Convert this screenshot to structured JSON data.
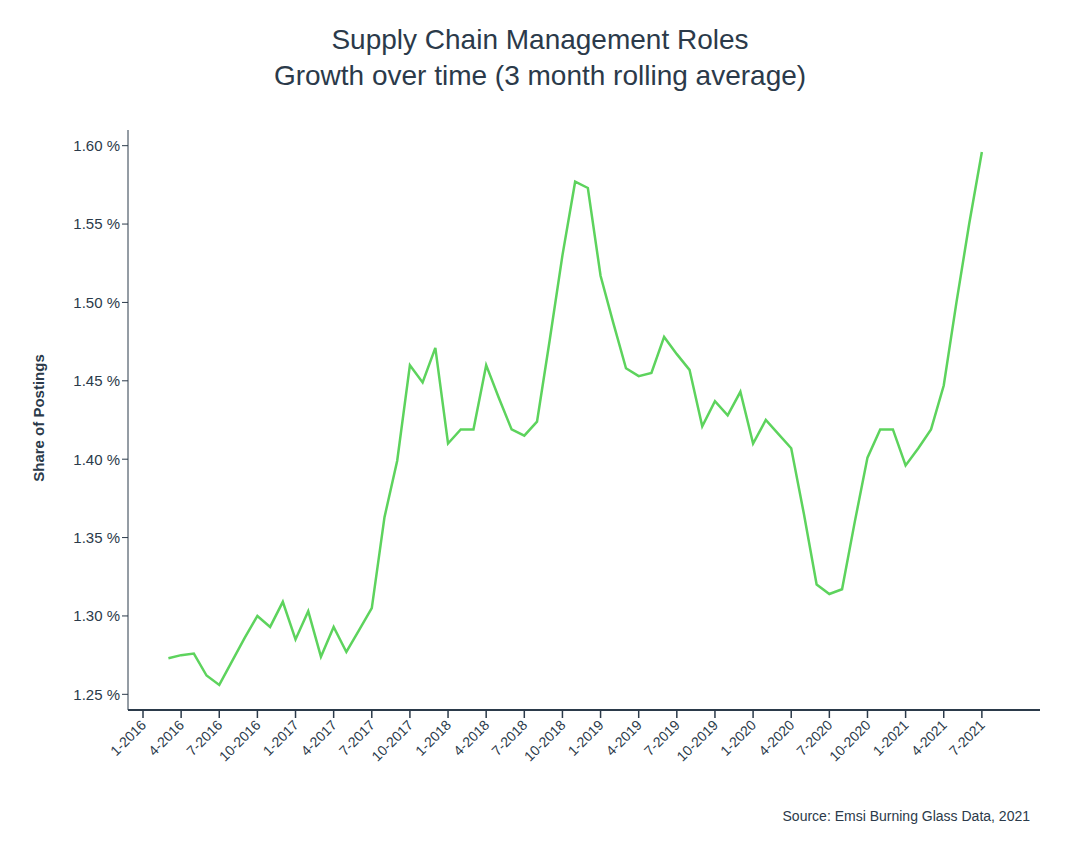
{
  "chart_data": {
    "type": "line",
    "title": "Supply Chain Management Roles\nGrowth over time (3 month rolling average)",
    "y_label": "Share of Postings",
    "source": "Source: Emsi Burning Glass Data, 2021",
    "categories": [
      "1-2016",
      null,
      null,
      "4-2016",
      null,
      null,
      "7-2016",
      null,
      null,
      "10-2016",
      null,
      null,
      "1-2017",
      null,
      null,
      "4-2017",
      null,
      null,
      "7-2017",
      null,
      null,
      "10-2017",
      null,
      null,
      "1-2018",
      null,
      null,
      "4-2018",
      null,
      null,
      "7-2018",
      null,
      null,
      "10-2018",
      null,
      null,
      "1-2019",
      null,
      null,
      "4-2019",
      null,
      null,
      "7-2019",
      null,
      null,
      "10-2019",
      null,
      null,
      "1-2020",
      null,
      null,
      "4-2020",
      null,
      null,
      "7-2020",
      null,
      null,
      "10-2020",
      null,
      null,
      "1-2021",
      null,
      null,
      "4-2021",
      null,
      null,
      "7-2021",
      null,
      null,
      null
    ],
    "values": [
      null,
      null,
      1.273,
      1.275,
      1.276,
      1.262,
      1.256,
      1.271,
      1.286,
      1.3,
      1.293,
      1.309,
      1.285,
      1.303,
      1.274,
      1.293,
      1.277,
      1.291,
      1.305,
      1.363,
      1.399,
      1.46,
      1.449,
      1.471,
      1.41,
      1.419,
      1.419,
      1.46,
      1.439,
      1.419,
      1.415,
      1.424,
      1.476,
      1.53,
      1.577,
      1.573,
      1.517,
      1.487,
      1.458,
      1.453,
      1.455,
      1.478,
      1.467,
      1.457,
      1.421,
      1.437,
      1.428,
      1.443,
      1.41,
      1.425,
      1.416,
      1.407,
      1.365,
      1.32,
      1.314,
      1.317,
      1.36,
      1.401,
      1.419,
      1.419,
      1.396,
      1.407,
      1.419,
      1.447,
      1.5,
      1.55,
      1.596,
      null,
      null,
      null
    ],
    "color": "#5dd35d",
    "marker": "none",
    "ylim": [
      1.24,
      1.61
    ],
    "yticks": [
      {
        "value": 1.25,
        "label": "1.25 %"
      },
      {
        "value": 1.3,
        "label": "1.30 %"
      },
      {
        "value": 1.35,
        "label": "1.35 %"
      },
      {
        "value": 1.4,
        "label": "1.40 %"
      },
      {
        "value": 1.45,
        "label": "1.45 %"
      },
      {
        "value": 1.5,
        "label": "1.50 %"
      },
      {
        "value": 1.55,
        "label": "1.55 %"
      },
      {
        "value": 1.6,
        "label": "1.60 %"
      }
    ],
    "grid": false
  }
}
